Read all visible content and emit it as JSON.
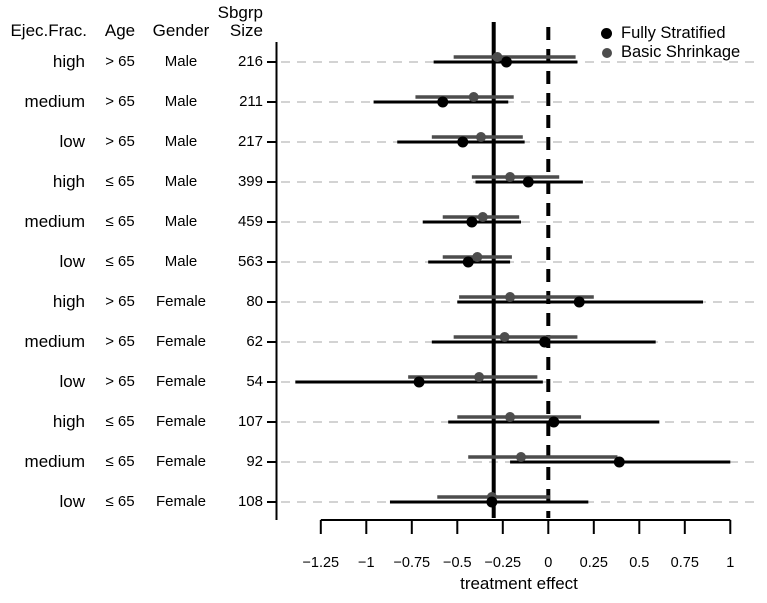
{
  "chart_data": {
    "type": "forest",
    "title": "",
    "xlabel": "treatment effect",
    "x_ticks": [
      -1.25,
      -1,
      -0.75,
      -0.5,
      -0.25,
      0,
      0.25,
      0.5,
      0.75,
      1
    ],
    "x_tick_labels": [
      "−1.25",
      "−1",
      "−0.75",
      "−0.5",
      "−0.25",
      "0",
      "0.25",
      "0.5",
      "0.75",
      "1"
    ],
    "xlim": [
      -1.45,
      1.1
    ],
    "grid": true,
    "legend_position": "top-right",
    "reference_lines": {
      "overall_effect": -0.3,
      "zero": 0
    },
    "colors": {
      "fully_stratified": "#000000",
      "basic_shrinkage": "#4d4d4d",
      "gridline": "#d3d3d3",
      "axis": "#000000"
    },
    "legend": [
      {
        "label": "Fully Stratified",
        "color": "#000000"
      },
      {
        "label": "Basic Shrinkage",
        "color": "#4d4d4d"
      }
    ],
    "table": {
      "header": {
        "ejec_frac": "Ejec.Frac.",
        "age": "Age",
        "gender": "Gender",
        "sbgrp": "Sbgrp",
        "size": "Size"
      }
    },
    "rows": [
      {
        "ejec_frac": "high",
        "age": "> 65",
        "gender": "Male",
        "size": "216",
        "fully_stratified": {
          "est": -0.23,
          "lo": -0.63,
          "hi": 0.16
        },
        "basic_shrinkage": {
          "est": -0.28,
          "lo": -0.52,
          "hi": 0.15
        }
      },
      {
        "ejec_frac": "medium",
        "age": "> 65",
        "gender": "Male",
        "size": "211",
        "fully_stratified": {
          "est": -0.58,
          "lo": -0.96,
          "hi": -0.22
        },
        "basic_shrinkage": {
          "est": -0.41,
          "lo": -0.73,
          "hi": -0.19
        }
      },
      {
        "ejec_frac": "low",
        "age": "> 65",
        "gender": "Male",
        "size": "217",
        "fully_stratified": {
          "est": -0.47,
          "lo": -0.83,
          "hi": -0.13
        },
        "basic_shrinkage": {
          "est": -0.37,
          "lo": -0.64,
          "hi": -0.14
        }
      },
      {
        "ejec_frac": "high",
        "age": "≤ 65",
        "gender": "Male",
        "size": "399",
        "fully_stratified": {
          "est": -0.11,
          "lo": -0.4,
          "hi": 0.19
        },
        "basic_shrinkage": {
          "est": -0.21,
          "lo": -0.42,
          "hi": 0.06
        }
      },
      {
        "ejec_frac": "medium",
        "age": "≤ 65",
        "gender": "Male",
        "size": "459",
        "fully_stratified": {
          "est": -0.42,
          "lo": -0.69,
          "hi": -0.15
        },
        "basic_shrinkage": {
          "est": -0.36,
          "lo": -0.58,
          "hi": -0.16
        }
      },
      {
        "ejec_frac": "low",
        "age": "≤ 65",
        "gender": "Male",
        "size": "563",
        "fully_stratified": {
          "est": -0.44,
          "lo": -0.66,
          "hi": -0.21
        },
        "basic_shrinkage": {
          "est": -0.39,
          "lo": -0.58,
          "hi": -0.2
        }
      },
      {
        "ejec_frac": "high",
        "age": "> 65",
        "gender": "Female",
        "size": "80",
        "fully_stratified": {
          "est": 0.17,
          "lo": -0.5,
          "hi": 0.85
        },
        "basic_shrinkage": {
          "est": -0.21,
          "lo": -0.49,
          "hi": 0.25
        }
      },
      {
        "ejec_frac": "medium",
        "age": "> 65",
        "gender": "Female",
        "size": "62",
        "fully_stratified": {
          "est": -0.02,
          "lo": -0.64,
          "hi": 0.59
        },
        "basic_shrinkage": {
          "est": -0.24,
          "lo": -0.52,
          "hi": 0.16
        }
      },
      {
        "ejec_frac": "low",
        "age": "> 65",
        "gender": "Female",
        "size": "54",
        "fully_stratified": {
          "est": -0.71,
          "lo": -1.39,
          "hi": -0.03
        },
        "basic_shrinkage": {
          "est": -0.38,
          "lo": -0.77,
          "hi": -0.06
        }
      },
      {
        "ejec_frac": "high",
        "age": "≤ 65",
        "gender": "Female",
        "size": "107",
        "fully_stratified": {
          "est": 0.03,
          "lo": -0.55,
          "hi": 0.61
        },
        "basic_shrinkage": {
          "est": -0.21,
          "lo": -0.5,
          "hi": 0.18
        }
      },
      {
        "ejec_frac": "medium",
        "age": "≤ 65",
        "gender": "Female",
        "size": "92",
        "fully_stratified": {
          "est": 0.39,
          "lo": -0.21,
          "hi": 1.0
        },
        "basic_shrinkage": {
          "est": -0.15,
          "lo": -0.44,
          "hi": 0.38
        }
      },
      {
        "ejec_frac": "low",
        "age": "≤ 65",
        "gender": "Female",
        "size": "108",
        "fully_stratified": {
          "est": -0.31,
          "lo": -0.87,
          "hi": 0.22
        },
        "basic_shrinkage": {
          "est": -0.31,
          "lo": -0.61,
          "hi": 0.01
        }
      }
    ]
  }
}
